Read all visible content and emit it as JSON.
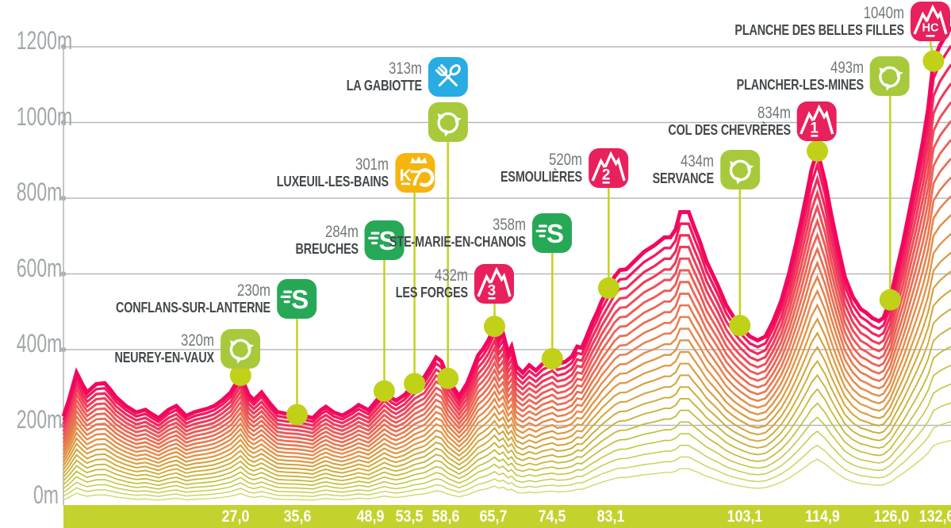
{
  "chart": {
    "y_axis_labels": [
      "1200m",
      "1000m",
      "800m",
      "600m",
      "400m",
      "200m",
      "0m"
    ]
  },
  "chart_data": {
    "type": "area",
    "description": "Cycling stage elevation profile",
    "x_unit": "km",
    "y_unit": "m",
    "x_range_km": [
      0,
      135.3
    ],
    "y_range_m": [
      0,
      1200
    ],
    "grid": true,
    "legend_position": "none",
    "y_ticks_m": [
      0,
      200,
      400,
      600,
      800,
      1000,
      1200
    ],
    "x_tick_labels": [
      "27,0",
      "35,6",
      "48,9",
      "53,5",
      "58,6",
      "65,7",
      "74,5",
      "83,1",
      "103,1",
      "114,9",
      "126,0",
      "132,6"
    ],
    "profile_km_elevation": [
      [
        0,
        226
      ],
      [
        0.8,
        262
      ],
      [
        2.0,
        326
      ],
      [
        3.0,
        296
      ],
      [
        3.6,
        281
      ],
      [
        5.0,
        300
      ],
      [
        6.3,
        302
      ],
      [
        7.2,
        286
      ],
      [
        8.0,
        270
      ],
      [
        9.5,
        250
      ],
      [
        11.1,
        235
      ],
      [
        12.5,
        241
      ],
      [
        13.4,
        232
      ],
      [
        14.5,
        222
      ],
      [
        16.0,
        241
      ],
      [
        17.2,
        250
      ],
      [
        18.7,
        227
      ],
      [
        20.0,
        236
      ],
      [
        21.8,
        243
      ],
      [
        23.0,
        250
      ],
      [
        24.2,
        263
      ],
      [
        25.5,
        281
      ],
      [
        27.0,
        320
      ],
      [
        28.2,
        276
      ],
      [
        29.0,
        263
      ],
      [
        30.2,
        281
      ],
      [
        31.5,
        255
      ],
      [
        32.6,
        236
      ],
      [
        34.0,
        232
      ],
      [
        35.6,
        230
      ],
      [
        37.0,
        226
      ],
      [
        38.0,
        222
      ],
      [
        39.2,
        240
      ],
      [
        40.0,
        248
      ],
      [
        41.2,
        235
      ],
      [
        42.5,
        228
      ],
      [
        44.0,
        241
      ],
      [
        45.0,
        252
      ],
      [
        46.5,
        240
      ],
      [
        47.5,
        258
      ],
      [
        48.9,
        284
      ],
      [
        50.0,
        268
      ],
      [
        50.7,
        262
      ],
      [
        52.0,
        275
      ],
      [
        53.5,
        301
      ],
      [
        55.0,
        316
      ],
      [
        56.0,
        340
      ],
      [
        56.8,
        361
      ],
      [
        57.6,
        352
      ],
      [
        58.6,
        313
      ],
      [
        59.5,
        291
      ],
      [
        60.3,
        272
      ],
      [
        61.5,
        301
      ],
      [
        62.3,
        331
      ],
      [
        63.2,
        366
      ],
      [
        64.0,
        381
      ],
      [
        64.8,
        401
      ],
      [
        65.7,
        432
      ],
      [
        66.4,
        401
      ],
      [
        67.0,
        416
      ],
      [
        67.8,
        371
      ],
      [
        68.3,
        386
      ],
      [
        69.0,
        341
      ],
      [
        70.0,
        326
      ],
      [
        71.0,
        343
      ],
      [
        72.0,
        331
      ],
      [
        73.0,
        346
      ],
      [
        74.5,
        358
      ],
      [
        75.3,
        346
      ],
      [
        76.5,
        351
      ],
      [
        77.5,
        363
      ],
      [
        78.3,
        386
      ],
      [
        79.0,
        383
      ],
      [
        79.8,
        411
      ],
      [
        80.6,
        441
      ],
      [
        81.3,
        463
      ],
      [
        82.0,
        489
      ],
      [
        83.1,
        520
      ],
      [
        84.0,
        546
      ],
      [
        84.8,
        561
      ],
      [
        85.8,
        563
      ],
      [
        87.0,
        581
      ],
      [
        88.5,
        603
      ],
      [
        90.1,
        618
      ],
      [
        91.6,
        636
      ],
      [
        92.5,
        636
      ],
      [
        93.3,
        654
      ],
      [
        94.0,
        694
      ],
      [
        95.3,
        694
      ],
      [
        96.1,
        661
      ],
      [
        97.0,
        626
      ],
      [
        98.0,
        581
      ],
      [
        99.7,
        527
      ],
      [
        101.0,
        481
      ],
      [
        102.1,
        454
      ],
      [
        103.1,
        434
      ],
      [
        104.6,
        409
      ],
      [
        105.8,
        400
      ],
      [
        107.0,
        409
      ],
      [
        108.2,
        445
      ],
      [
        109.4,
        491
      ],
      [
        110.6,
        554
      ],
      [
        111.6,
        618
      ],
      [
        112.4,
        672
      ],
      [
        113.3,
        736
      ],
      [
        114.0,
        790
      ],
      [
        114.9,
        834
      ],
      [
        116.1,
        763
      ],
      [
        117.0,
        690
      ],
      [
        118.0,
        618
      ],
      [
        119.1,
        545
      ],
      [
        120.3,
        500
      ],
      [
        121.5,
        472
      ],
      [
        122.4,
        463
      ],
      [
        123.3,
        451
      ],
      [
        124.3,
        444
      ],
      [
        125.0,
        452
      ],
      [
        126.0,
        493
      ],
      [
        127.0,
        561
      ],
      [
        128.0,
        626
      ],
      [
        129.0,
        701
      ],
      [
        130.0,
        776
      ],
      [
        131.0,
        856
      ],
      [
        131.8,
        931
      ],
      [
        132.6,
        1040
      ],
      [
        133.6,
        1076
      ],
      [
        134.5,
        1099
      ],
      [
        135.3,
        1118
      ]
    ],
    "waypoints": [
      {
        "km_label": "27,0",
        "km": 27.0,
        "elevation_label": "320m",
        "elevation_m": 320,
        "name": "NEUREY-EN-VAUX",
        "icons": [
          "recycle"
        ]
      },
      {
        "km_label": "35,6",
        "km": 35.6,
        "elevation_label": "230m",
        "elevation_m": 230,
        "name": "CONFLANS-SUR-LANTERNE",
        "icons": [
          "sprint"
        ]
      },
      {
        "km_label": "48,9",
        "km": 48.9,
        "elevation_label": "284m",
        "elevation_m": 284,
        "name": "BREUCHES",
        "icons": [
          "sprint"
        ]
      },
      {
        "km_label": "53,5",
        "km": 53.5,
        "elevation_label": "301m",
        "elevation_m": 301,
        "name": "LUXEUIL-LES-BAINS",
        "icons": [
          "k70"
        ]
      },
      {
        "km_label": "58,6",
        "km": 58.6,
        "elevation_label": "313m",
        "elevation_m": 313,
        "name": "LA GABIOTTE",
        "icons": [
          "feed",
          "recycle"
        ]
      },
      {
        "km_label": "65,7",
        "km": 65.7,
        "elevation_label": "432m",
        "elevation_m": 432,
        "name": "LES FORGES",
        "icons": [
          "climb-3"
        ]
      },
      {
        "km_label": "74,5",
        "km": 74.5,
        "elevation_label": "358m",
        "elevation_m": 358,
        "name": "STE-MARIE-EN-CHANOIS",
        "icons": [
          "sprint"
        ]
      },
      {
        "km_label": "83,1",
        "km": 83.1,
        "elevation_label": "520m",
        "elevation_m": 520,
        "name": "ESMOULIÈRES",
        "icons": [
          "climb-2"
        ]
      },
      {
        "km_label": "103,1",
        "km": 103.1,
        "elevation_label": "434m",
        "elevation_m": 434,
        "name": "SERVANCE",
        "icons": [
          "recycle"
        ]
      },
      {
        "km_label": "114,9",
        "km": 114.9,
        "elevation_label": "834m",
        "elevation_m": 834,
        "name": "COL DES CHEVRÈRES",
        "icons": [
          "climb-1"
        ]
      },
      {
        "km_label": "126,0",
        "km": 126.0,
        "elevation_label": "493m",
        "elevation_m": 493,
        "name": "PLANCHER-LES-MINES",
        "icons": [
          "recycle"
        ]
      },
      {
        "km_label": "132,6",
        "km": 132.6,
        "elevation_label": "1040m",
        "elevation_m": 1040,
        "name": "PLANCHE DES BELLES FILLES",
        "icons": [
          "climb-hc"
        ]
      }
    ],
    "climb_badge_text": {
      "climb-3": "3",
      "climb-2": "2",
      "climb-1": "1",
      "climb-hc": "HC"
    },
    "sprint_letter": "S",
    "k70_text": {
      "k": "K",
      "seven": "7"
    },
    "colors": {
      "climb_pink": "#e8205c",
      "sprint_green": "#27a857",
      "recycle_green": "#a8c93c",
      "feed_blue": "#29abe3",
      "k70_yellow": "#f6b40f",
      "marker_green": "#c1d117",
      "bar_green": "#c4d22e",
      "grid_gray": "#b6b9bb",
      "grid_dot_gray": "#a8adb0",
      "profile_gradient": [
        "#f3075e",
        "#ee555a",
        "#e68b4a",
        "#d4a53c",
        "#c2bb37",
        "#ccd761"
      ]
    }
  }
}
